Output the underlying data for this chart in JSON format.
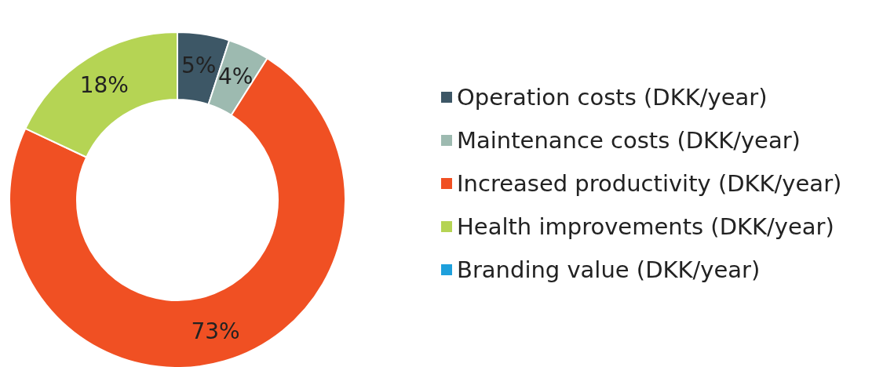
{
  "chart_data": {
    "type": "donut",
    "categories": [
      "Operation costs (DKK/year)",
      "Maintenance costs (DKK/year)",
      "Increased productivity (DKK/year)",
      "Health improvements (DKK/year)",
      "Branding value (DKK/year)"
    ],
    "values": [
      5,
      4,
      73,
      18,
      0
    ],
    "colors": [
      "#3d5766",
      "#9dbab0",
      "#f05023",
      "#b5d454",
      "#1ea0dc"
    ],
    "value_labels": [
      "5%",
      "4%",
      "73%",
      "18%",
      null
    ],
    "legend": "right"
  }
}
